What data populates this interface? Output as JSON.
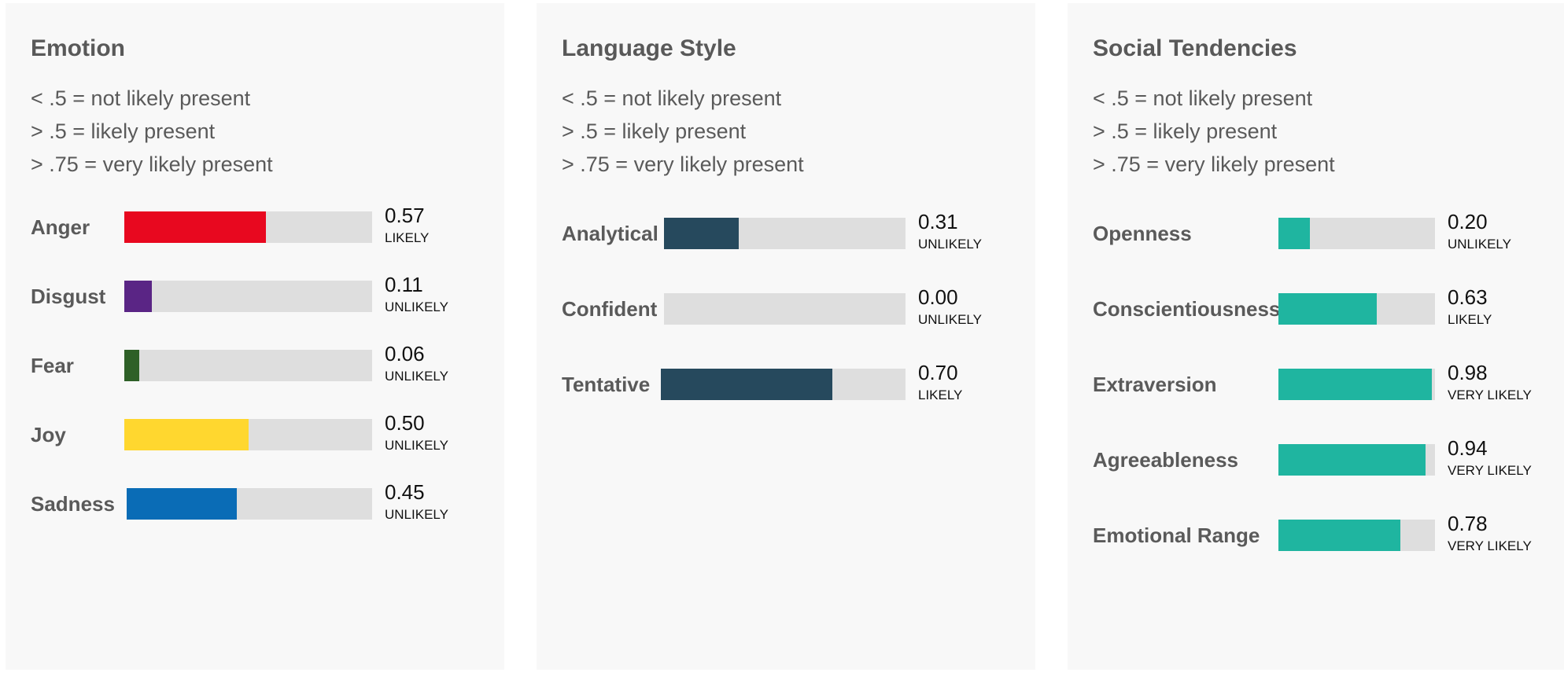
{
  "legend": [
    "< .5 = not likely present",
    "> .5 = likely present",
    "> .75 = very likely present"
  ],
  "panels": [
    {
      "title": "Emotion",
      "rows": [
        {
          "label": "Anger",
          "value": 0.57,
          "display": "0.57",
          "likelihood": "LIKELY",
          "color": "#e8081f"
        },
        {
          "label": "Disgust",
          "value": 0.11,
          "display": "0.11",
          "likelihood": "UNLIKELY",
          "color": "#5a2585"
        },
        {
          "label": "Fear",
          "value": 0.06,
          "display": "0.06",
          "likelihood": "UNLIKELY",
          "color": "#2e6027"
        },
        {
          "label": "Joy",
          "value": 0.5,
          "display": "0.50",
          "likelihood": "UNLIKELY",
          "color": "#ffd72f"
        },
        {
          "label": "Sadness",
          "value": 0.45,
          "display": "0.45",
          "likelihood": "UNLIKELY",
          "color": "#0a6cb6"
        }
      ]
    },
    {
      "title": "Language Style",
      "rows": [
        {
          "label": "Analytical",
          "value": 0.31,
          "display": "0.31",
          "likelihood": "UNLIKELY",
          "color": "#26495d"
        },
        {
          "label": "Confident",
          "value": 0.0,
          "display": "0.00",
          "likelihood": "UNLIKELY",
          "color": "#26495d"
        },
        {
          "label": "Tentative",
          "value": 0.7,
          "display": "0.70",
          "likelihood": "LIKELY",
          "color": "#26495d"
        }
      ]
    },
    {
      "title": "Social Tendencies",
      "rows": [
        {
          "label": "Openness",
          "value": 0.2,
          "display": "0.20",
          "likelihood": "UNLIKELY",
          "color": "#1fb5a0"
        },
        {
          "label": "Conscientiousness",
          "value": 0.63,
          "display": "0.63",
          "likelihood": "LIKELY",
          "color": "#1fb5a0"
        },
        {
          "label": "Extraversion",
          "value": 0.98,
          "display": "0.98",
          "likelihood": "VERY LIKELY",
          "color": "#1fb5a0"
        },
        {
          "label": "Agreeableness",
          "value": 0.94,
          "display": "0.94",
          "likelihood": "VERY LIKELY",
          "color": "#1fb5a0"
        },
        {
          "label": "Emotional Range",
          "value": 0.78,
          "display": "0.78",
          "likelihood": "VERY LIKELY",
          "color": "#1fb5a0"
        }
      ]
    }
  ]
}
